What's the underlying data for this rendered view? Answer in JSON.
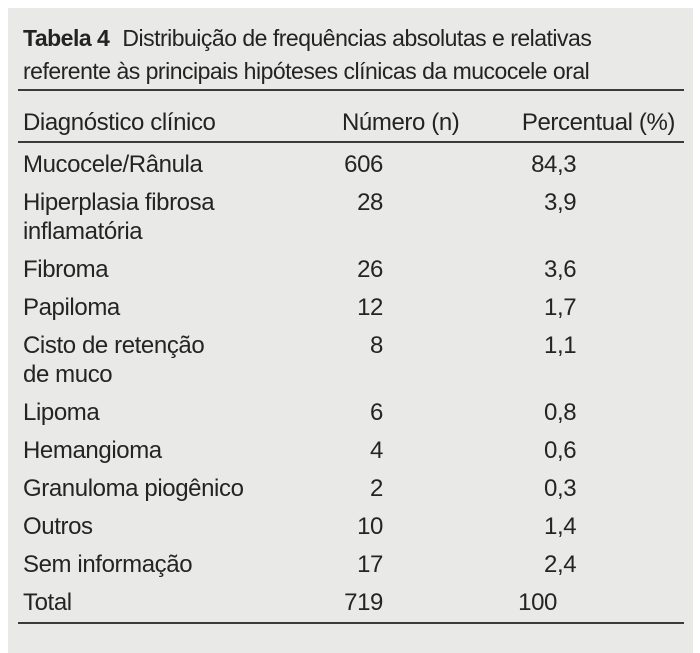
{
  "table": {
    "caption": {
      "tag": "Tabela 4",
      "line1": "Distribuição de frequências absolutas e relativas",
      "line2": "referente às principais hipóteses clínicas da mucocele oral"
    },
    "columns": [
      "Diagnóstico clínico",
      "Número (n)",
      "Percentual (%)"
    ],
    "rows": [
      {
        "diagnosis": "Mucocele/Rânula",
        "n": "606",
        "pct": "84,3"
      },
      {
        "diagnosis": "Hiperplasia fibrosa\ninflamatória",
        "n": "28",
        "pct": "3,9"
      },
      {
        "diagnosis": "Fibroma",
        "n": "26",
        "pct": "3,6"
      },
      {
        "diagnosis": "Papiloma",
        "n": "12",
        "pct": "1,7"
      },
      {
        "diagnosis": "Cisto de retenção\nde muco",
        "n": "8",
        "pct": "1,1"
      },
      {
        "diagnosis": "Lipoma",
        "n": "6",
        "pct": "0,8"
      },
      {
        "diagnosis": "Hemangioma",
        "n": "4",
        "pct": "0,6"
      },
      {
        "diagnosis": "Granuloma piogênico",
        "n": "2",
        "pct": "0,3"
      },
      {
        "diagnosis": "Outros",
        "n": "10",
        "pct": "1,4"
      },
      {
        "diagnosis": "Sem informação",
        "n": "17",
        "pct": "2,4"
      },
      {
        "diagnosis": "Total",
        "n": "719",
        "pct": "100"
      }
    ]
  },
  "colors": {
    "page_background": "#ffffff",
    "panel_background": "#e9e9e7",
    "text": "#242422",
    "rule": "#3b3b3b"
  }
}
